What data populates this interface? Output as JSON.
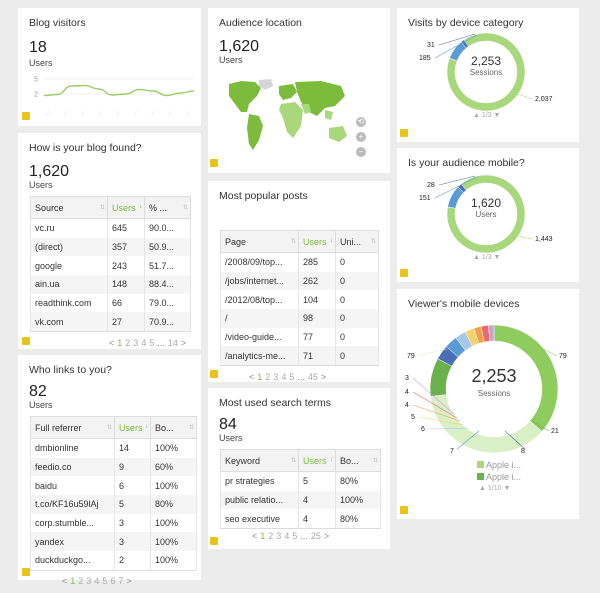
{
  "blog_visitors": {
    "title": "Blog visitors",
    "value": "18",
    "label": "Users",
    "chart_data": {
      "type": "line",
      "y_ticks": [
        "5",
        "2"
      ],
      "x_ticks": [
        "—",
        "—",
        "—",
        "—",
        "—",
        "—",
        "—",
        "—",
        "—"
      ],
      "values": [
        1.7,
        1.9,
        3.6,
        3.7,
        3.0,
        1.8,
        2.0,
        2.9,
        2.6,
        1.7,
        2.2,
        2.6
      ],
      "ylim": [
        0,
        6
      ],
      "color": "#9acd6a"
    }
  },
  "blog_found": {
    "title": "How is your blog found?",
    "value": "1,620",
    "label": "Users",
    "columns": [
      "Source",
      "Users",
      "% ..."
    ],
    "rows": [
      [
        "vc.ru",
        "645",
        "90.0..."
      ],
      [
        "(direct)",
        "357",
        "50.9..."
      ],
      [
        "google",
        "243",
        "51.7..."
      ],
      [
        "ain.ua",
        "148",
        "88.4..."
      ],
      [
        "readthink.com",
        "66",
        "79.0..."
      ],
      [
        "vk.com",
        "27",
        "70.9..."
      ]
    ],
    "pager": {
      "prev": "<",
      "pages": [
        "1",
        "2",
        "3",
        "4",
        "5"
      ],
      "ellipsis": "...",
      "last": "14",
      "next": ">"
    }
  },
  "who_links": {
    "title": "Who links to you?",
    "value": "82",
    "label": "Users",
    "columns": [
      "Full referrer",
      "Users",
      "Bo..."
    ],
    "rows": [
      [
        "dmbionline",
        "14",
        "100%"
      ],
      [
        "feedio.co",
        "9",
        "60%"
      ],
      [
        "baidu",
        "6",
        "100%"
      ],
      [
        "t.co/KF16u59lAj",
        "5",
        "80%"
      ],
      [
        "corp.stumble...",
        "3",
        "100%"
      ],
      [
        "yandex",
        "3",
        "100%"
      ],
      [
        "duckduckgo...",
        "2",
        "100%"
      ]
    ],
    "pager": {
      "prev": "<",
      "pages": [
        "1",
        "2",
        "3",
        "4",
        "5",
        "6",
        "7"
      ],
      "next": ">"
    }
  },
  "audience_location": {
    "title": "Audience location",
    "value": "1,620",
    "label": "Users",
    "controls": [
      "⟲",
      "+",
      "−"
    ]
  },
  "popular_posts": {
    "title": "Most popular posts",
    "columns": [
      "Page",
      "Users",
      "Uni..."
    ],
    "rows": [
      [
        "/2008/09/top...",
        "285",
        "0"
      ],
      [
        "/jobs/internet...",
        "262",
        "0"
      ],
      [
        "/2012/08/top...",
        "104",
        "0"
      ],
      [
        "/",
        "98",
        "0"
      ],
      [
        "/video-guide...",
        "77",
        "0"
      ],
      [
        "/analytics-me...",
        "71",
        "0"
      ]
    ],
    "pager": {
      "prev": "<",
      "pages": [
        "1",
        "2",
        "3",
        "4",
        "5"
      ],
      "ellipsis": "...",
      "last": "45",
      "next": ">"
    }
  },
  "search_terms": {
    "title": "Most used search terms",
    "value": "84",
    "label": "Users",
    "columns": [
      "Keyword",
      "Users",
      "Bo..."
    ],
    "rows": [
      [
        "pr strategies",
        "5",
        "80%"
      ],
      [
        "public relatio...",
        "4",
        "100%"
      ],
      [
        "seo executive",
        "4",
        "80%"
      ]
    ],
    "pager": {
      "prev": "<",
      "pages": [
        "1",
        "2",
        "3",
        "4",
        "5"
      ],
      "ellipsis": "...",
      "last": "25",
      "next": ">"
    }
  },
  "device_category": {
    "title": "Visits by device category",
    "center_value": "2,253",
    "center_label": "Sessions",
    "nav": "▲ 1/3 ▼",
    "chart_data": {
      "type": "pie",
      "values": [
        2037,
        185,
        31
      ],
      "labels": [
        "2,037",
        "185",
        "31"
      ],
      "colors": [
        "#a8d77c",
        "#5b9bd5",
        "#4a6fb5"
      ]
    }
  },
  "audience_mobile": {
    "title": "Is your audience mobile?",
    "center_value": "1,620",
    "center_label": "Users",
    "nav": "▲ 1/3 ▼",
    "chart_data": {
      "type": "pie",
      "values": [
        1443,
        151,
        28
      ],
      "labels": [
        "1,443",
        "151",
        "28"
      ],
      "colors": [
        "#a8d77c",
        "#5b9bd5",
        "#4a6fb5"
      ]
    }
  },
  "mobile_devices": {
    "title": "Viewer's mobile devices",
    "center_value": "2,253",
    "center_label": "Sessions",
    "legend": [
      "Apple i...",
      "Apple i..."
    ],
    "legend_colors": [
      "#a8d77c",
      "#6ab04c"
    ],
    "nav": "▲ 1/10 ▼",
    "chart_data": {
      "type": "pie",
      "values": [
        79,
        79,
        21,
        8,
        7,
        6,
        5,
        4,
        4,
        3
      ],
      "labels": [
        "79",
        "79",
        "21",
        "8",
        "7",
        "6",
        "5",
        "4",
        "4",
        "3"
      ],
      "colors": [
        "#8fcc5e",
        "#d9efc6",
        "#6ab04c",
        "#4a6fb5",
        "#5b9bd5",
        "#a6c8e8",
        "#f5d16a",
        "#f0a04a",
        "#e86a6a",
        "#c9a0dc"
      ]
    }
  }
}
